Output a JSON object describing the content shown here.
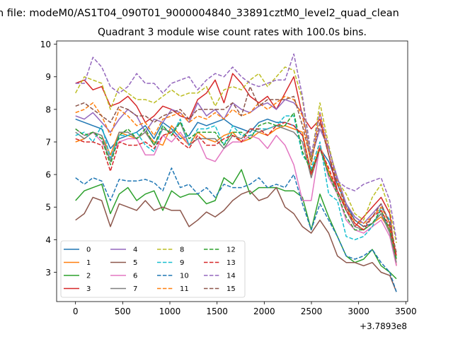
{
  "chart_data": {
    "type": "line",
    "suptitle": "n file: modeM0/AS1T04_090T01_9000004840_33891cztM0_level2_quad_clean",
    "title": "Quadrant 3 module wise count rates with 100.0s bins.",
    "xlabel": "",
    "ylabel": "",
    "x_offset_label": "+3.7893e8",
    "xlim": [
      -200,
      3520
    ],
    "ylim": [
      2.1,
      10.1
    ],
    "xticks": [
      0,
      500,
      1000,
      1500,
      2000,
      2500,
      3000,
      3500
    ],
    "yticks": [
      3,
      4,
      5,
      6,
      7,
      8,
      9,
      10
    ],
    "legend_position": "lower-left",
    "x": [
      0,
      93,
      185,
      278,
      370,
      463,
      555,
      648,
      740,
      833,
      925,
      1018,
      1110,
      1203,
      1295,
      1388,
      1480,
      1573,
      1665,
      1758,
      1850,
      1943,
      2035,
      2128,
      2220,
      2313,
      2405,
      2498,
      2590,
      2683,
      2775,
      2868,
      2960,
      3053,
      3145,
      3238,
      3330,
      3400
    ],
    "series": [
      {
        "name": "0",
        "color": "#1f77b4",
        "dash": "solid",
        "values": [
          7.7,
          7.6,
          7.5,
          7.4,
          6.8,
          7.1,
          7.2,
          7.3,
          7.5,
          7.1,
          7.6,
          7.4,
          7.1,
          7.2,
          7.6,
          7.5,
          7.6,
          7.7,
          7.5,
          7.4,
          7.3,
          7.6,
          7.7,
          7.6,
          7.6,
          7.5,
          7.2,
          6.1,
          6.8,
          6.4,
          5.7,
          5.1,
          4.6,
          4.4,
          4.5,
          4.8,
          4.3,
          3.5
        ]
      },
      {
        "name": "1",
        "color": "#ff7f0e",
        "dash": "solid",
        "values": [
          7.0,
          7.1,
          7.3,
          7.2,
          6.6,
          7.3,
          7.2,
          7.1,
          7.3,
          7.0,
          6.9,
          7.5,
          7.2,
          6.9,
          7.3,
          7.1,
          7.0,
          7.2,
          7.3,
          7.0,
          7.1,
          7.3,
          7.2,
          7.4,
          7.5,
          7.4,
          7.3,
          6.0,
          6.9,
          6.1,
          5.5,
          5.0,
          4.5,
          4.3,
          4.5,
          4.7,
          4.3,
          3.4
        ]
      },
      {
        "name": "2",
        "color": "#2ca02c",
        "dash": "solid",
        "values": [
          5.2,
          5.5,
          5.6,
          5.7,
          4.8,
          5.4,
          5.6,
          5.2,
          5.4,
          5.5,
          4.9,
          5.5,
          5.3,
          5.4,
          5.4,
          5.1,
          5.2,
          5.9,
          5.7,
          6.15,
          5.4,
          5.6,
          5.6,
          5.6,
          5.5,
          5.5,
          5.3,
          4.3,
          5.4,
          4.7,
          4.1,
          3.5,
          3.3,
          3.4,
          3.7,
          3.2,
          3.0,
          2.8
        ]
      },
      {
        "name": "3",
        "color": "#d62728",
        "dash": "solid",
        "values": [
          8.8,
          8.9,
          8.6,
          8.7,
          8.1,
          8.2,
          8.4,
          8.1,
          7.6,
          7.8,
          8.1,
          8.0,
          7.8,
          7.7,
          8.3,
          8.5,
          8.9,
          8.2,
          9.1,
          8.8,
          8.4,
          8.2,
          8.4,
          8.0,
          8.5,
          9.0,
          7.8,
          7.4,
          7.7,
          6.6,
          5.5,
          4.9,
          4.4,
          4.7,
          5.0,
          5.3,
          4.8,
          3.2
        ]
      },
      {
        "name": "4",
        "color": "#9467bd",
        "dash": "solid",
        "values": [
          7.8,
          7.7,
          7.9,
          7.6,
          7.3,
          7.7,
          8.0,
          7.8,
          7.3,
          7.7,
          7.6,
          8.0,
          7.9,
          7.6,
          8.2,
          7.8,
          8.0,
          7.7,
          8.2,
          8.0,
          7.9,
          8.1,
          8.2,
          8.0,
          8.3,
          8.2,
          7.9,
          6.5,
          7.4,
          6.8,
          5.9,
          5.1,
          4.7,
          4.5,
          4.8,
          5.1,
          4.5,
          3.5
        ]
      },
      {
        "name": "5",
        "color": "#8c564b",
        "dash": "solid",
        "values": [
          4.6,
          4.8,
          5.3,
          5.2,
          4.4,
          5.1,
          5.0,
          4.9,
          5.2,
          4.9,
          5.0,
          4.9,
          4.9,
          4.4,
          4.6,
          4.85,
          4.7,
          4.9,
          5.2,
          5.4,
          5.5,
          5.2,
          5.3,
          5.6,
          5.0,
          4.8,
          4.4,
          4.2,
          4.6,
          4.2,
          3.5,
          3.3,
          3.3,
          3.2,
          3.3,
          3.0,
          2.9,
          2.4
        ]
      },
      {
        "name": "6",
        "color": "#e377c2",
        "dash": "solid",
        "values": [
          7.4,
          7.2,
          7.3,
          7.0,
          6.5,
          7.0,
          7.1,
          7.1,
          6.6,
          6.6,
          7.2,
          7.0,
          7.3,
          6.9,
          7.1,
          6.5,
          6.4,
          6.8,
          7.0,
          7.0,
          7.2,
          7.1,
          6.8,
          7.2,
          6.9,
          6.3,
          5.2,
          5.2,
          6.9,
          5.9,
          5.4,
          4.6,
          4.3,
          4.2,
          4.4,
          4.6,
          4.1,
          3.2
        ]
      },
      {
        "name": "7",
        "color": "#7f7f7f",
        "dash": "solid",
        "values": [
          7.3,
          7.1,
          7.3,
          7.2,
          6.4,
          7.3,
          7.3,
          7.1,
          7.3,
          6.9,
          7.4,
          7.3,
          7.6,
          6.9,
          7.1,
          7.1,
          7.1,
          6.8,
          7.2,
          7.1,
          7.4,
          7.3,
          7.4,
          7.5,
          7.4,
          7.3,
          7.0,
          5.9,
          6.8,
          6.0,
          5.5,
          4.9,
          4.4,
          4.3,
          4.5,
          4.8,
          4.2,
          3.3
        ]
      },
      {
        "name": "8",
        "color": "#bcbd22",
        "dash": "dashed",
        "values": [
          8.5,
          9.0,
          8.9,
          8.8,
          8.0,
          8.7,
          8.5,
          8.3,
          8.3,
          8.2,
          8.4,
          8.6,
          8.4,
          8.5,
          8.5,
          8.7,
          8.1,
          8.6,
          8.7,
          8.6,
          8.9,
          9.1,
          8.7,
          9.0,
          9.3,
          9.2,
          8.3,
          6.5,
          8.2,
          6.9,
          5.8,
          5.4,
          4.8,
          4.6,
          5.3,
          5.7,
          4.9,
          3.9
        ]
      },
      {
        "name": "9",
        "color": "#17becf",
        "dash": "dashed",
        "values": [
          7.2,
          7.3,
          7.0,
          7.5,
          6.5,
          7.2,
          7.2,
          7.3,
          6.9,
          6.7,
          7.5,
          7.2,
          7.7,
          6.9,
          7.4,
          7.4,
          7.5,
          6.9,
          7.5,
          7.2,
          7.2,
          7.4,
          7.4,
          7.5,
          7.8,
          7.8,
          6.6,
          6.2,
          7.0,
          5.4,
          5.2,
          4.1,
          4.0,
          4.1,
          4.4,
          5.0,
          4.6,
          3.4
        ]
      },
      {
        "name": "10",
        "color": "#1f77b4",
        "dash": "dashed",
        "values": [
          5.9,
          5.7,
          5.9,
          5.8,
          5.2,
          5.85,
          5.8,
          5.8,
          5.85,
          5.75,
          5.5,
          6.2,
          5.6,
          5.7,
          5.4,
          5.6,
          5.3,
          5.7,
          5.6,
          5.6,
          5.7,
          5.9,
          5.6,
          5.7,
          5.6,
          6.0,
          5.1,
          4.3,
          5.1,
          4.6,
          4.1,
          3.5,
          3.4,
          3.5,
          3.7,
          3.3,
          3.0,
          2.4
        ]
      },
      {
        "name": "11",
        "color": "#ff7f0e",
        "dash": "dashed",
        "values": [
          7.9,
          8.0,
          8.2,
          7.8,
          7.2,
          8.0,
          7.8,
          7.5,
          7.6,
          7.2,
          7.7,
          7.8,
          7.9,
          7.6,
          7.8,
          7.7,
          7.9,
          7.7,
          8.0,
          7.8,
          7.9,
          8.2,
          8.0,
          8.2,
          8.4,
          8.3,
          7.8,
          6.3,
          7.9,
          6.6,
          5.8,
          5.0,
          4.6,
          4.5,
          4.7,
          5.0,
          4.5,
          3.5
        ]
      },
      {
        "name": "12",
        "color": "#2ca02c",
        "dash": "dashed",
        "values": [
          7.4,
          7.2,
          7.3,
          7.1,
          6.3,
          7.2,
          7.4,
          7.1,
          7.4,
          6.9,
          7.5,
          7.2,
          7.6,
          7.1,
          7.3,
          7.3,
          7.3,
          6.9,
          7.3,
          7.3,
          7.1,
          7.5,
          7.6,
          7.5,
          7.5,
          7.9,
          6.7,
          6.1,
          6.8,
          6.0,
          5.4,
          4.7,
          4.3,
          4.3,
          4.5,
          4.9,
          4.3,
          3.4
        ]
      },
      {
        "name": "13",
        "color": "#d62728",
        "dash": "dashed",
        "values": [
          7.1,
          7.0,
          7.0,
          6.9,
          6.1,
          7.0,
          6.9,
          6.9,
          7.0,
          6.8,
          7.2,
          7.3,
          7.0,
          6.8,
          7.2,
          6.9,
          6.9,
          7.1,
          7.2,
          7.0,
          7.4,
          7.4,
          7.2,
          7.5,
          7.6,
          7.5,
          7.2,
          6.0,
          6.8,
          6.2,
          5.5,
          4.9,
          4.5,
          4.3,
          4.7,
          4.9,
          4.4,
          3.5
        ]
      },
      {
        "name": "14",
        "color": "#9467bd",
        "dash": "dashed",
        "values": [
          8.8,
          8.8,
          9.6,
          9.3,
          8.7,
          8.5,
          8.7,
          9.1,
          8.8,
          8.8,
          8.5,
          8.8,
          8.9,
          9.0,
          8.6,
          8.9,
          9.1,
          9.0,
          9.3,
          9.0,
          8.8,
          8.7,
          8.8,
          8.9,
          8.9,
          9.7,
          8.4,
          6.6,
          7.9,
          6.8,
          5.8,
          5.6,
          5.5,
          5.7,
          5.8,
          5.9,
          5.2,
          4.0
        ]
      },
      {
        "name": "15",
        "color": "#8c564b",
        "dash": "dashed",
        "values": [
          8.1,
          8.2,
          8.0,
          7.8,
          7.6,
          8.1,
          8.0,
          7.8,
          7.8,
          7.6,
          7.8,
          7.9,
          8.0,
          7.7,
          8.0,
          8.0,
          8.0,
          8.0,
          8.2,
          7.8,
          8.7,
          8.1,
          8.3,
          8.3,
          8.3,
          8.4,
          7.5,
          6.4,
          7.6,
          6.6,
          5.7,
          5.0,
          4.6,
          4.4,
          4.7,
          5.1,
          4.5,
          3.6
        ]
      }
    ]
  }
}
